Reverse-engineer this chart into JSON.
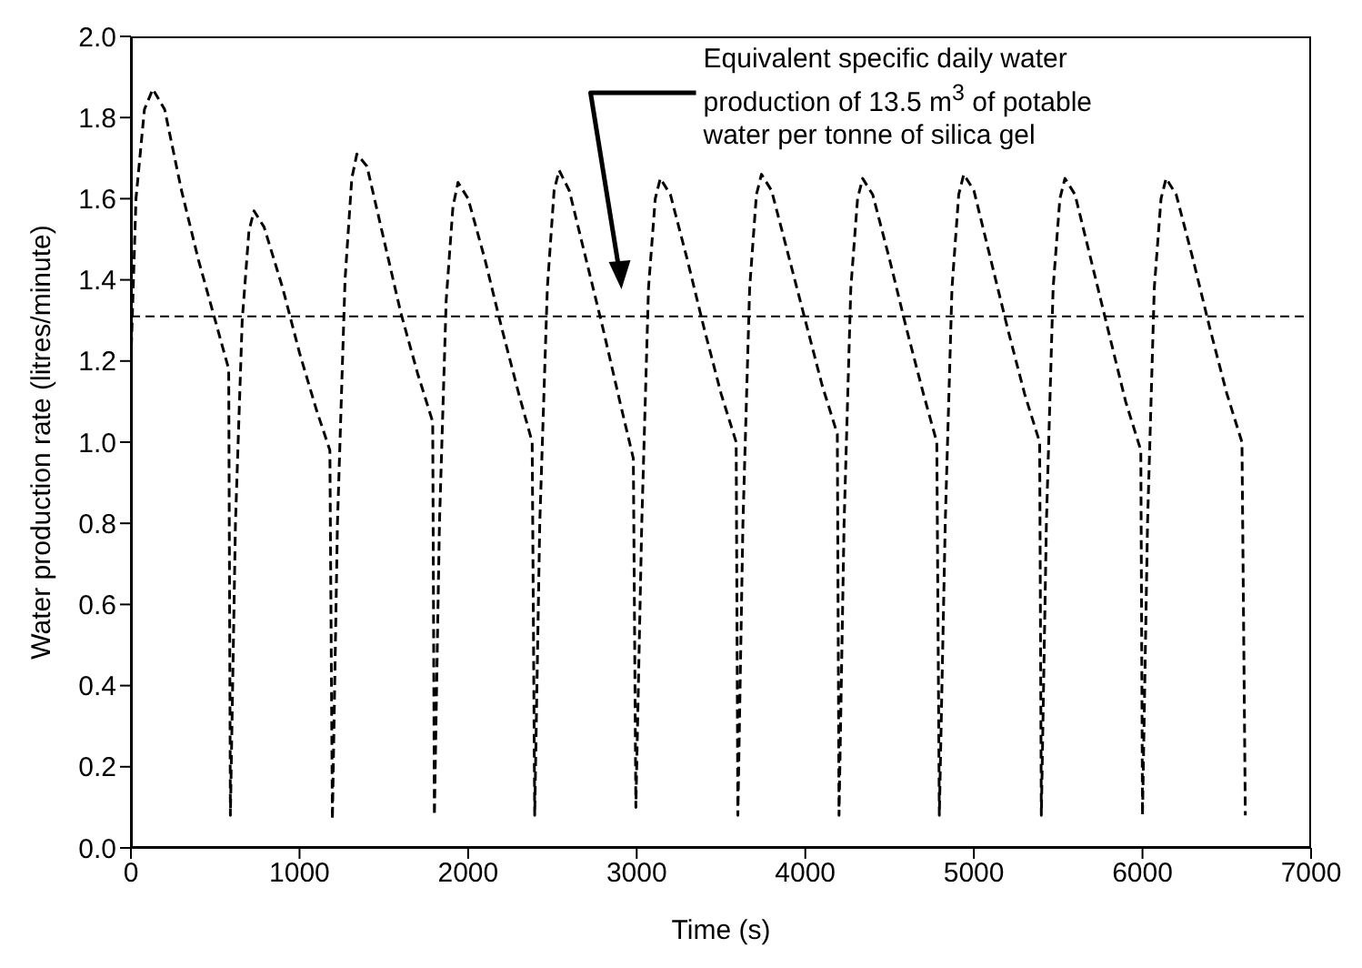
{
  "chart_data": {
    "type": "line",
    "xlabel": "Time (s)",
    "ylabel": "Water production rate (litres/minute)",
    "xlim": [
      0,
      7000
    ],
    "xticks": [
      0,
      1000,
      2000,
      3000,
      4000,
      5000,
      6000,
      7000
    ],
    "ylim": [
      0,
      2
    ],
    "yticks": [
      {
        "value": 0,
        "label": "0.0"
      },
      {
        "value": 0.2,
        "label": "0.2"
      },
      {
        "value": 0.4,
        "label": "0.4"
      },
      {
        "value": 0.6,
        "label": "0.6"
      },
      {
        "value": 0.8,
        "label": "0.8"
      },
      {
        "value": 1,
        "label": "1.0"
      },
      {
        "value": 1.2,
        "label": "1.2"
      },
      {
        "value": 1.4,
        "label": "1.4"
      },
      {
        "value": 1.6,
        "label": "1.6"
      },
      {
        "value": 1.8,
        "label": "1.8"
      },
      {
        "value": 2,
        "label": "2.0"
      }
    ],
    "grid": false,
    "legend": false,
    "marker": "none",
    "line_style": "dashed",
    "ref_lines": [
      {
        "axis": "y",
        "value": 1.31,
        "color": "#000000",
        "line_style": "dashed"
      }
    ],
    "annotations": [
      "Equivalent specific daily water production of 13.5 m$^{3}$ of potable water per tonne of silica gel"
    ],
    "series": [
      {
        "color": "#000000",
        "x": [
          0,
          30,
          80,
          130,
          200,
          300,
          400,
          500,
          580,
          590,
          620,
          660,
          700,
          730,
          790,
          900,
          1000,
          1100,
          1180,
          1195,
          1225,
          1270,
          1310,
          1340,
          1400,
          1500,
          1600,
          1700,
          1790,
          1800,
          1830,
          1870,
          1910,
          1940,
          2000,
          2100,
          2200,
          2300,
          2380,
          2395,
          2425,
          2470,
          2510,
          2540,
          2600,
          2700,
          2800,
          2900,
          2980,
          2995,
          3030,
          3070,
          3110,
          3140,
          3200,
          3300,
          3400,
          3500,
          3590,
          3600,
          3630,
          3670,
          3710,
          3740,
          3800,
          3900,
          4000,
          4100,
          4190,
          4200,
          4230,
          4270,
          4310,
          4340,
          4400,
          4500,
          4600,
          4700,
          4780,
          4795,
          4830,
          4870,
          4910,
          4940,
          5000,
          5100,
          5200,
          5300,
          5390,
          5400,
          5430,
          5470,
          5510,
          5540,
          5600,
          5700,
          5800,
          5900,
          5990,
          6000,
          6030,
          6070,
          6110,
          6140,
          6200,
          6300,
          6400,
          6500,
          6590,
          6610
        ],
        "values": [
          1.2,
          1.6,
          1.82,
          1.87,
          1.82,
          1.62,
          1.45,
          1.3,
          1.18,
          0.08,
          0.8,
          1.3,
          1.52,
          1.57,
          1.53,
          1.38,
          1.22,
          1.08,
          0.98,
          0.07,
          0.8,
          1.4,
          1.65,
          1.71,
          1.68,
          1.5,
          1.32,
          1.17,
          1.05,
          0.08,
          0.8,
          1.35,
          1.58,
          1.64,
          1.6,
          1.45,
          1.28,
          1.12,
          1.0,
          0.08,
          0.8,
          1.38,
          1.62,
          1.67,
          1.62,
          1.45,
          1.28,
          1.1,
          0.96,
          0.1,
          0.8,
          1.38,
          1.6,
          1.65,
          1.61,
          1.45,
          1.28,
          1.12,
          1.0,
          0.08,
          0.8,
          1.38,
          1.61,
          1.66,
          1.62,
          1.46,
          1.3,
          1.14,
          1.02,
          0.08,
          0.8,
          1.38,
          1.6,
          1.65,
          1.61,
          1.45,
          1.28,
          1.12,
          1.0,
          0.08,
          0.8,
          1.38,
          1.61,
          1.66,
          1.62,
          1.45,
          1.28,
          1.12,
          1.0,
          0.08,
          0.8,
          1.38,
          1.6,
          1.65,
          1.61,
          1.44,
          1.27,
          1.1,
          0.98,
          0.08,
          0.8,
          1.38,
          1.6,
          1.65,
          1.61,
          1.45,
          1.28,
          1.12,
          1.0,
          0.08
        ]
      }
    ]
  }
}
